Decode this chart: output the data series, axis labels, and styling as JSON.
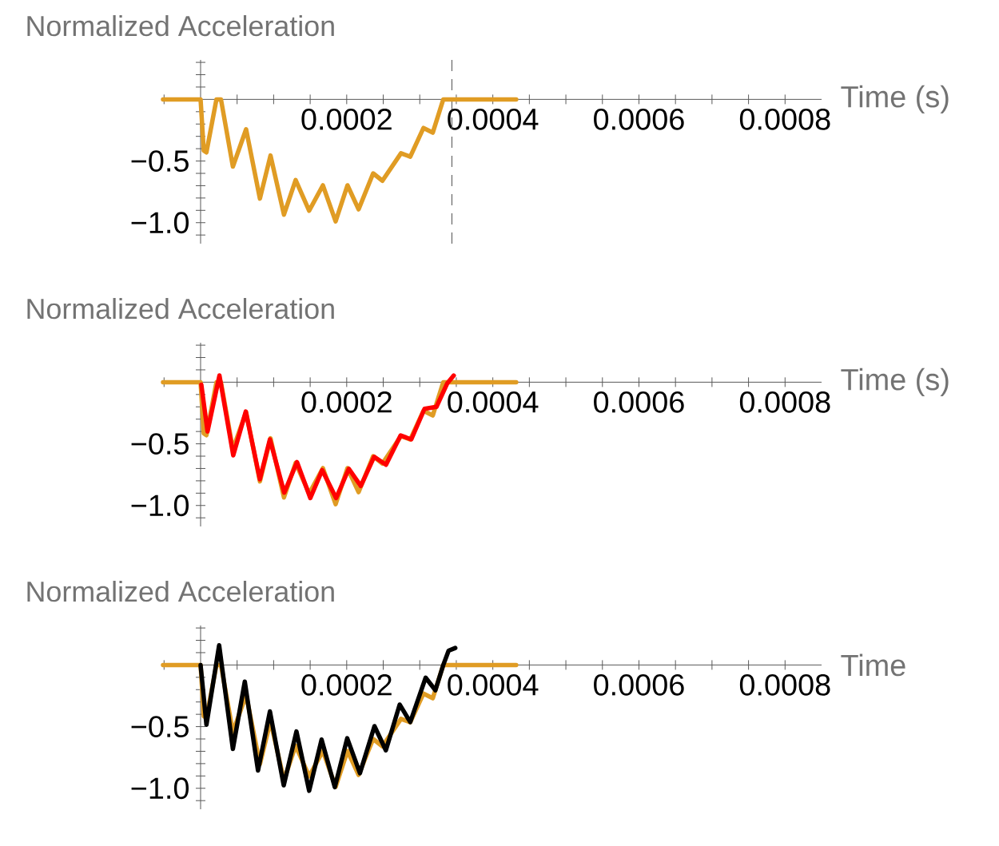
{
  "chart_data": [
    {
      "type": "line",
      "ylabel": "Normalized Acceleration",
      "xlabel": "Time (s)",
      "xlim": [
        -5.14e-05,
        0.00085
      ],
      "ylim": [
        -1.17,
        0.32
      ],
      "xticks": [
        {
          "value": -5e-05,
          "label": null
        },
        {
          "value": 5e-05,
          "label": null
        },
        {
          "value": 0.0001,
          "label": null
        },
        {
          "value": 0.00015,
          "label": null
        },
        0.0002,
        {
          "value": 0.00025,
          "label": null
        },
        {
          "value": 0.0003,
          "label": null
        },
        {
          "value": 0.00035,
          "label": null
        },
        0.0004,
        {
          "value": 0.00045,
          "label": null
        },
        {
          "value": 0.0005,
          "label": null
        },
        {
          "value": 0.00055,
          "label": null
        },
        0.0006,
        {
          "value": 0.00065,
          "label": null
        },
        {
          "value": 0.0007,
          "label": null
        },
        {
          "value": 0.00075,
          "label": null
        },
        0.0008
      ],
      "yticks": [
        {
          "value": 0.3,
          "label": null
        },
        {
          "value": 0.2,
          "label": null
        },
        {
          "value": 0.1,
          "label": null
        },
        {
          "value": -0.1,
          "label": null
        },
        {
          "value": -0.2,
          "label": null
        },
        {
          "value": -0.3,
          "label": null
        },
        {
          "value": -0.4,
          "label": null
        },
        {
          "value": -0.5,
          "label": "−0.5"
        },
        {
          "value": -0.6,
          "label": null
        },
        {
          "value": -0.7,
          "label": null
        },
        {
          "value": -0.8,
          "label": null
        },
        {
          "value": -0.9,
          "label": null
        },
        {
          "value": -1,
          "label": "−1.0"
        },
        {
          "value": -1.1,
          "label": null
        }
      ],
      "ref_lines": [
        {
          "axis": "x",
          "value": 0.000344,
          "color": "#666666",
          "line_style": "dashed"
        }
      ],
      "series": [
        {
          "color": "#e09c24",
          "x": [
            -5.14e-05,
            0,
            4.3e-06,
            8e-06,
            2.17e-05,
            2.79e-05,
            4.42e-05,
            6.23e-05,
            8.12e-05,
            9.57e-05,
            0.0001141,
            0.0001301,
            0.0001486,
            0.0001674,
            0.0001848,
            0.0002011,
            0.0002163,
            0.0002362,
            0.0002489,
            0.0002743,
            0.000287,
            0.0003051,
            0.0003178,
            0.0003322,
            0.000432
          ],
          "values": [
            0,
            0,
            -0.415,
            -0.43,
            0,
            0,
            -0.545,
            -0.242,
            -0.805,
            -0.455,
            -0.935,
            -0.654,
            -0.903,
            -0.697,
            -0.989,
            -0.697,
            -0.892,
            -0.6,
            -0.66,
            -0.437,
            -0.465,
            -0.232,
            -0.27,
            0,
            0
          ]
        }
      ]
    },
    {
      "type": "line",
      "ylabel": "Normalized Acceleration",
      "xlabel": "Time (s)",
      "xlim": [
        -5.14e-05,
        0.00085
      ],
      "ylim": [
        -1.17,
        0.32
      ],
      "xticks": [
        {
          "value": -5e-05,
          "label": null
        },
        {
          "value": 5e-05,
          "label": null
        },
        {
          "value": 0.0001,
          "label": null
        },
        {
          "value": 0.00015,
          "label": null
        },
        0.0002,
        {
          "value": 0.00025,
          "label": null
        },
        {
          "value": 0.0003,
          "label": null
        },
        {
          "value": 0.00035,
          "label": null
        },
        0.0004,
        {
          "value": 0.00045,
          "label": null
        },
        {
          "value": 0.0005,
          "label": null
        },
        {
          "value": 0.00055,
          "label": null
        },
        0.0006,
        {
          "value": 0.00065,
          "label": null
        },
        {
          "value": 0.0007,
          "label": null
        },
        {
          "value": 0.00075,
          "label": null
        },
        0.0008
      ],
      "yticks": [
        {
          "value": 0.3,
          "label": null
        },
        {
          "value": 0.2,
          "label": null
        },
        {
          "value": 0.1,
          "label": null
        },
        {
          "value": -0.1,
          "label": null
        },
        {
          "value": -0.2,
          "label": null
        },
        {
          "value": -0.3,
          "label": null
        },
        {
          "value": -0.4,
          "label": null
        },
        {
          "value": -0.5,
          "label": "−0.5"
        },
        {
          "value": -0.6,
          "label": null
        },
        {
          "value": -0.7,
          "label": null
        },
        {
          "value": -0.8,
          "label": null
        },
        {
          "value": -0.9,
          "label": null
        },
        {
          "value": -1,
          "label": "−1.0"
        },
        {
          "value": -1.1,
          "label": null
        }
      ],
      "series": [
        {
          "color": "#e09c24",
          "x": [
            -5.14e-05,
            0,
            4.3e-06,
            8e-06,
            2.17e-05,
            2.79e-05,
            4.42e-05,
            6.23e-05,
            8.12e-05,
            9.57e-05,
            0.0001141,
            0.0001301,
            0.0001486,
            0.0001674,
            0.0001848,
            0.0002011,
            0.0002163,
            0.0002362,
            0.0002489,
            0.0002743,
            0.000287,
            0.0003051,
            0.0003178,
            0.0003322,
            0.000432
          ],
          "values": [
            0,
            0,
            -0.415,
            -0.43,
            0,
            0,
            -0.545,
            -0.242,
            -0.805,
            -0.455,
            -0.935,
            -0.654,
            -0.903,
            -0.697,
            -0.989,
            -0.697,
            -0.892,
            -0.6,
            -0.66,
            -0.437,
            -0.465,
            -0.232,
            -0.27,
            0,
            0
          ]
        },
        {
          "color": "#ff0000",
          "x": [
            1e-06,
            9.5e-06,
            2.58e-05,
            4.47e-05,
            6.18e-05,
            8.11e-05,
            9.49e-05,
            0.0001145,
            0.000132,
            0.0001502,
            0.0001665,
            0.0001855,
            0.0002029,
            0.0002193,
            0.0002375,
            0.0002538,
            0.0002738,
            0.0002884,
            0.0003065,
            0.0003229,
            0.0003375,
            0.0003465
          ],
          "values": [
            -0.02,
            -0.4,
            0.054,
            -0.594,
            -0.238,
            -0.788,
            -0.464,
            -0.896,
            -0.648,
            -0.94,
            -0.713,
            -0.94,
            -0.702,
            -0.842,
            -0.605,
            -0.67,
            -0.432,
            -0.464,
            -0.216,
            -0.2,
            -0.011,
            0.054
          ]
        }
      ]
    },
    {
      "type": "line",
      "ylabel": "Normalized Acceleration",
      "xlabel": "Time",
      "xlim": [
        -5.14e-05,
        0.00085
      ],
      "ylim": [
        -1.17,
        0.32
      ],
      "xticks": [
        {
          "value": -5e-05,
          "label": null
        },
        {
          "value": 5e-05,
          "label": null
        },
        {
          "value": 0.0001,
          "label": null
        },
        {
          "value": 0.00015,
          "label": null
        },
        0.0002,
        {
          "value": 0.00025,
          "label": null
        },
        {
          "value": 0.0003,
          "label": null
        },
        {
          "value": 0.00035,
          "label": null
        },
        0.0004,
        {
          "value": 0.00045,
          "label": null
        },
        {
          "value": 0.0005,
          "label": null
        },
        {
          "value": 0.00055,
          "label": null
        },
        0.0006,
        {
          "value": 0.00065,
          "label": null
        },
        {
          "value": 0.0007,
          "label": null
        },
        {
          "value": 0.00075,
          "label": null
        },
        0.0008
      ],
      "yticks": [
        {
          "value": 0.3,
          "label": null
        },
        {
          "value": 0.2,
          "label": null
        },
        {
          "value": 0.1,
          "label": null
        },
        {
          "value": -0.1,
          "label": null
        },
        {
          "value": -0.2,
          "label": null
        },
        {
          "value": -0.3,
          "label": null
        },
        {
          "value": -0.4,
          "label": null
        },
        {
          "value": -0.5,
          "label": "−0.5"
        },
        {
          "value": -0.6,
          "label": null
        },
        {
          "value": -0.7,
          "label": null
        },
        {
          "value": -0.8,
          "label": null
        },
        {
          "value": -0.9,
          "label": null
        },
        {
          "value": -1,
          "label": "−1.0"
        },
        {
          "value": -1.1,
          "label": null
        }
      ],
      "series": [
        {
          "color": "#e09c24",
          "x": [
            -5.14e-05,
            0,
            4.3e-06,
            8e-06,
            2.17e-05,
            2.79e-05,
            4.42e-05,
            6.23e-05,
            8.12e-05,
            9.57e-05,
            0.0001141,
            0.0001301,
            0.0001486,
            0.0001674,
            0.0001848,
            0.0002011,
            0.0002163,
            0.0002362,
            0.0002489,
            0.0002743,
            0.000287,
            0.0003051,
            0.0003178,
            0.0003322,
            0.000432
          ],
          "values": [
            0,
            0,
            -0.415,
            -0.43,
            0,
            0,
            -0.545,
            -0.242,
            -0.805,
            -0.455,
            -0.935,
            -0.654,
            -0.903,
            -0.697,
            -0.989,
            -0.697,
            -0.892,
            -0.6,
            -0.66,
            -0.437,
            -0.465,
            -0.232,
            -0.27,
            0,
            0
          ]
        },
        {
          "color": "#000000",
          "x": [
            0,
            8e-06,
            2.54e-05,
            4.42e-05,
            6.05e-05,
            7.86e-05,
            9.49e-05,
            0.0001138,
            0.0001312,
            0.0001486,
            0.0001656,
            0.0001837,
            0.0002007,
            0.0002181,
            0.000238,
            0.0002536,
            0.0002725,
            0.000287,
            0.000308,
            0.0003214,
            0.0003322,
            0.0003395,
            0.0003486
          ],
          "values": [
            0,
            -0.485,
            0.16,
            -0.681,
            -0.135,
            -0.856,
            -0.376,
            -0.976,
            -0.539,
            -1.02,
            -0.605,
            -0.991,
            -0.594,
            -0.878,
            -0.496,
            -0.692,
            -0.321,
            -0.463,
            -0.103,
            -0.205,
            0,
            0.116,
            0.138
          ]
        }
      ]
    }
  ]
}
